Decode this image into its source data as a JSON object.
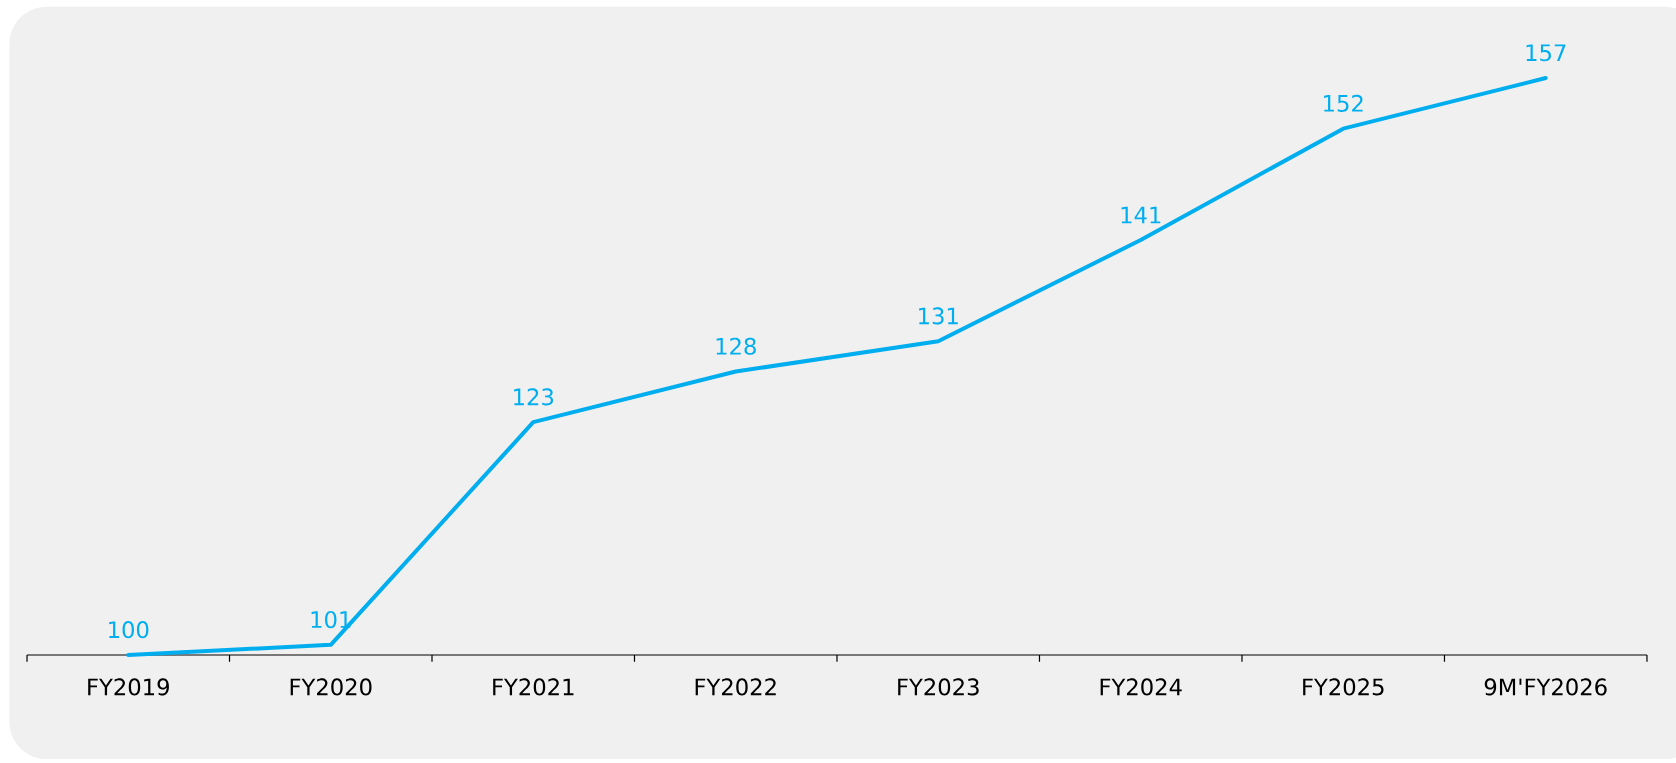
{
  "chart_data": {
    "type": "line",
    "categories": [
      "FY2019",
      "FY2020",
      "FY2021",
      "FY2022",
      "FY2023",
      "FY2024",
      "FY2025",
      "9M'FY2026"
    ],
    "values": [
      100,
      101,
      123,
      128,
      131,
      141,
      152,
      157
    ],
    "color": "#00aeef",
    "data_labels": true,
    "line_style": "solid",
    "marker": "none"
  }
}
